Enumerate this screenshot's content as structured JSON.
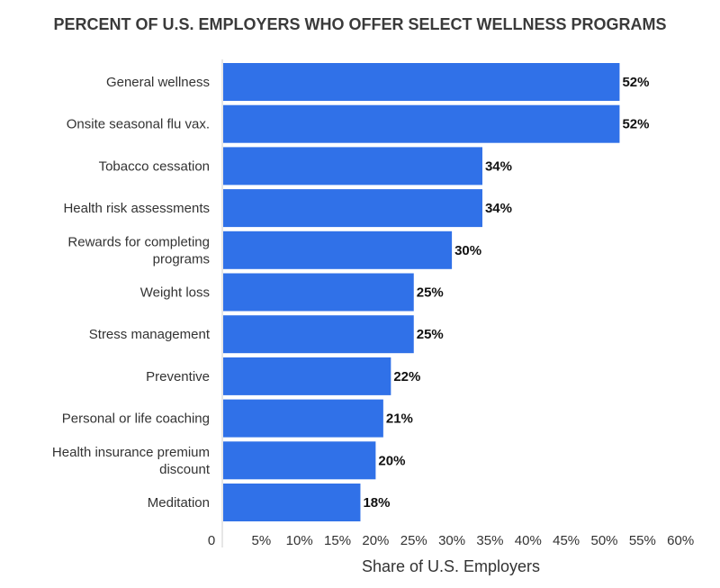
{
  "chart_data": {
    "type": "bar",
    "orientation": "horizontal",
    "title": "PERCENT OF U.S. EMPLOYERS WHO OFFER SELECT WELLNESS PROGRAMS",
    "xlabel": "Share of U.S. Employers",
    "ylabel": "",
    "categories": [
      [
        "General wellness"
      ],
      [
        "Onsite seasonal flu vax."
      ],
      [
        "Tobacco cessation"
      ],
      [
        "Health risk assessments"
      ],
      [
        "Rewards for completing",
        "programs"
      ],
      [
        "Weight loss"
      ],
      [
        "Stress management"
      ],
      [
        "Preventive"
      ],
      [
        "Personal or life coaching"
      ],
      [
        "Health insurance premium",
        "discount"
      ],
      [
        "Meditation"
      ]
    ],
    "values": [
      52,
      52,
      34,
      34,
      30,
      25,
      25,
      22,
      21,
      20,
      18
    ],
    "value_labels": [
      "52%",
      "52%",
      "34%",
      "34%",
      "30%",
      "25%",
      "25%",
      "22%",
      "21%",
      "20%",
      "18%"
    ],
    "xlim": [
      0,
      60
    ],
    "ticks": [
      0,
      5,
      10,
      15,
      20,
      25,
      30,
      35,
      40,
      45,
      50,
      55,
      60
    ],
    "tick_labels": [
      "0",
      "5%",
      "10%",
      "15%",
      "20%",
      "25%",
      "30%",
      "35%",
      "40%",
      "45%",
      "50%",
      "55%",
      "60%"
    ],
    "grid": false,
    "legend": "none",
    "bar_color": "#3071E8",
    "axis_color": "#cccccc"
  }
}
